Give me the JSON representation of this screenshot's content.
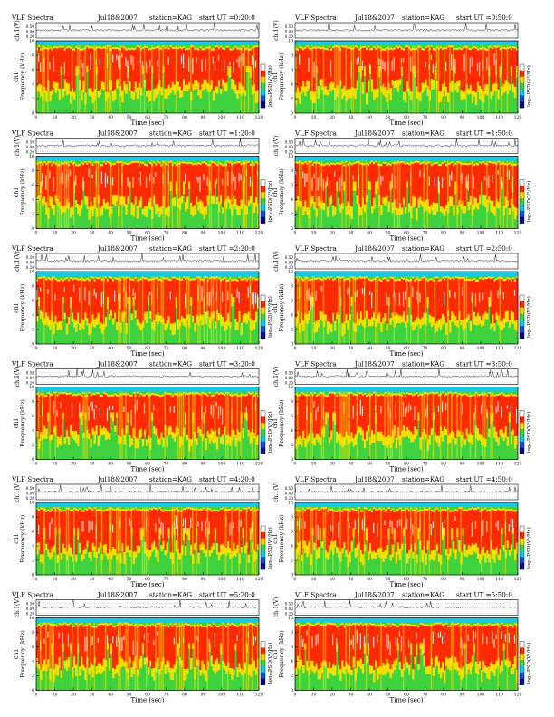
{
  "page": {
    "title": "VLF Spectra page"
  },
  "colors": {
    "background": "#ffffff",
    "spectrum_low": "#1a4bd6",
    "spectrum_mid_low": "#18c8e6",
    "spectrum_mid": "#3fd23f",
    "spectrum_mid_high": "#f2e100",
    "spectrum_high": "#ff2a00",
    "spectrum_peak": "#ffffff",
    "axis": "#000000"
  },
  "common_labels": {
    "title_left": "VLF Spectra",
    "date_left": "Jul18&2007",
    "date_right": "Jul18&2007",
    "station": "station=KAG",
    "start_prefix": "start  UT =",
    "amp_ylabel": "ch.1(V)",
    "freq_ylabel_ch": "ch1",
    "freq_ylabel": "Frequency (kHz)",
    "xlabel": "Time (sec)",
    "colorbar_label": "log₁₀PSD(V²/Hz)"
  },
  "chart_data": [
    {
      "type": "heatmap",
      "panel": "left",
      "start_ut": "0:20:0",
      "title": "VLF Spectra",
      "date": "Jul18&2007",
      "station": "station=KAG",
      "xlabel": "Time (sec)",
      "ylabel": "Frequency (kHz)",
      "amp_ylabel": "ch.1(V)",
      "x_ticks": [
        "0",
        "10",
        "20",
        "30",
        "40",
        "50",
        "60",
        "70",
        "80",
        "90",
        "100",
        "110",
        "120"
      ],
      "y_ticks": [
        "0",
        "2",
        "4",
        "6",
        "8",
        "10"
      ],
      "amp_ticks": [
        "0.50",
        "0.00",
        "0.20"
      ],
      "xlim": [
        0,
        120
      ],
      "ylim": [
        0,
        10
      ]
    },
    {
      "type": "heatmap",
      "panel": "right",
      "start_ut": "0:50:0",
      "title": "VLF Spectra",
      "date": "Jul18&2007",
      "station": "station=KAG",
      "xlabel": "Time (sec)",
      "ylabel": "Frequency (kHz)",
      "amp_ylabel": "ch.1(V)",
      "x_ticks": [
        "0",
        "10",
        "20",
        "30",
        "40",
        "50",
        "60",
        "70",
        "80",
        "90",
        "100",
        "110",
        "120"
      ],
      "y_ticks": [
        "0",
        "2",
        "4",
        "6",
        "8",
        "10"
      ],
      "amp_ticks": [
        "0.50",
        "0.00",
        "0.20"
      ],
      "xlim": [
        0,
        120
      ],
      "ylim": [
        0,
        10
      ]
    },
    {
      "type": "heatmap",
      "panel": "left",
      "start_ut": "1:20:0",
      "title": "VLF Spectra",
      "date": "Jul18&2007",
      "station": "station=KAG",
      "xlabel": "Time (sec)",
      "ylabel": "Frequency (kHz)",
      "amp_ylabel": "ch.1(V)",
      "x_ticks": [
        "0",
        "10",
        "20",
        "30",
        "40",
        "50",
        "60",
        "70",
        "80",
        "90",
        "100",
        "110",
        "120"
      ],
      "y_ticks": [
        "0",
        "2",
        "4",
        "6",
        "8",
        "10"
      ],
      "amp_ticks": [
        "0.50",
        "0.00",
        "0.20"
      ],
      "xlim": [
        0,
        120
      ],
      "ylim": [
        0,
        10
      ]
    },
    {
      "type": "heatmap",
      "panel": "right",
      "start_ut": "1:50:0",
      "title": "VLF Spectra",
      "date": "Jul18&2007",
      "station": "station=KAG",
      "xlabel": "Time (sec)",
      "ylabel": "Frequency (kHz)",
      "amp_ylabel": "ch.1(V)",
      "x_ticks": [
        "0",
        "10",
        "20",
        "30",
        "40",
        "50",
        "60",
        "70",
        "80",
        "90",
        "100",
        "110",
        "120"
      ],
      "y_ticks": [
        "0",
        "2",
        "4",
        "6",
        "8",
        "10"
      ],
      "amp_ticks": [
        "0.50",
        "0.00",
        "0.20"
      ],
      "xlim": [
        0,
        120
      ],
      "ylim": [
        0,
        10
      ]
    },
    {
      "type": "heatmap",
      "panel": "left",
      "start_ut": "2:20:0",
      "title": "VLF Spectra",
      "date": "Jul18&2007",
      "station": "station=KAG",
      "xlabel": "Time (sec)",
      "ylabel": "Frequency (kHz)",
      "amp_ylabel": "ch.1(V)",
      "x_ticks": [
        "0",
        "10",
        "20",
        "30",
        "40",
        "50",
        "60",
        "70",
        "80",
        "90",
        "100",
        "110",
        "120"
      ],
      "y_ticks": [
        "0",
        "2",
        "4",
        "6",
        "8",
        "10"
      ],
      "amp_ticks": [
        "0.50",
        "0.00",
        "0.20"
      ],
      "xlim": [
        0,
        120
      ],
      "ylim": [
        0,
        10
      ]
    },
    {
      "type": "heatmap",
      "panel": "right",
      "start_ut": "2:50:0",
      "title": "VLF Spectra",
      "date": "Jul18&2007",
      "station": "station=KAG",
      "xlabel": "Time (sec)",
      "ylabel": "Frequency (kHz)",
      "amp_ylabel": "ch.1(V)",
      "x_ticks": [
        "0",
        "10",
        "20",
        "30",
        "40",
        "50",
        "60",
        "70",
        "80",
        "90",
        "100",
        "110",
        "120"
      ],
      "y_ticks": [
        "0",
        "2",
        "4",
        "6",
        "8",
        "10"
      ],
      "amp_ticks": [
        "0.50",
        "0.00",
        "0.20"
      ],
      "xlim": [
        0,
        120
      ],
      "ylim": [
        0,
        10
      ]
    },
    {
      "type": "heatmap",
      "panel": "left",
      "start_ut": "3:20:0",
      "title": "VLF Spectra",
      "date": "Jul18&2007",
      "station": "station=KAG",
      "xlabel": "Time (sec)",
      "ylabel": "Frequency (kHz)",
      "amp_ylabel": "ch.1(V)",
      "x_ticks": [
        "0",
        "10",
        "20",
        "30",
        "40",
        "50",
        "60",
        "70",
        "80",
        "90",
        "100",
        "110",
        "120"
      ],
      "y_ticks": [
        "0",
        "2",
        "4",
        "6",
        "8",
        "10"
      ],
      "amp_ticks": [
        "0.50",
        "0.00",
        "0.20"
      ],
      "xlim": [
        0,
        120
      ],
      "ylim": [
        0,
        10
      ]
    },
    {
      "type": "heatmap",
      "panel": "right",
      "start_ut": "3:50:0",
      "title": "VLF Spectra",
      "date": "Jul18&2007",
      "station": "station=KAG",
      "xlabel": "Time (sec)",
      "ylabel": "Frequency (kHz)",
      "amp_ylabel": "ch.1(V)",
      "x_ticks": [
        "0",
        "10",
        "20",
        "30",
        "40",
        "50",
        "60",
        "70",
        "80",
        "90",
        "100",
        "110",
        "120"
      ],
      "y_ticks": [
        "0",
        "2",
        "4",
        "6",
        "8",
        "10"
      ],
      "amp_ticks": [
        "0.50",
        "0.00",
        "0.20"
      ],
      "xlim": [
        0,
        120
      ],
      "ylim": [
        0,
        10
      ]
    },
    {
      "type": "heatmap",
      "panel": "left",
      "start_ut": "4:20:0",
      "title": "VLF Spectra",
      "date": "Jul18&2007",
      "station": "station=KAG",
      "xlabel": "Time (sec)",
      "ylabel": "Frequency (kHz)",
      "amp_ylabel": "ch.1(V)",
      "x_ticks": [
        "0",
        "10",
        "20",
        "30",
        "40",
        "50",
        "60",
        "70",
        "80",
        "90",
        "100",
        "110",
        "120"
      ],
      "y_ticks": [
        "0",
        "2",
        "4",
        "6",
        "8",
        "10"
      ],
      "amp_ticks": [
        "0.50",
        "0.00",
        "0.20"
      ],
      "xlim": [
        0,
        120
      ],
      "ylim": [
        0,
        10
      ]
    },
    {
      "type": "heatmap",
      "panel": "right",
      "start_ut": "4:50:0",
      "title": "VLF Spectra",
      "date": "Jul18&2007",
      "station": "station=KAG",
      "xlabel": "Time (sec)",
      "ylabel": "Frequency (kHz)",
      "amp_ylabel": "ch.1(V)",
      "x_ticks": [
        "0",
        "10",
        "20",
        "30",
        "40",
        "50",
        "60",
        "70",
        "80",
        "90",
        "100",
        "110",
        "120"
      ],
      "y_ticks": [
        "0",
        "2",
        "4",
        "6",
        "8",
        "10"
      ],
      "amp_ticks": [
        "0.50",
        "0.00",
        "0.20"
      ],
      "xlim": [
        0,
        120
      ],
      "ylim": [
        0,
        10
      ]
    },
    {
      "type": "heatmap",
      "panel": "left",
      "start_ut": "5:20:0",
      "title": "VLF Spectra",
      "date": "Jul18&2007",
      "station": "station=KAG",
      "xlabel": "Time (sec)",
      "ylabel": "Frequency (kHz)",
      "amp_ylabel": "ch.1(V)",
      "x_ticks": [
        "0",
        "10",
        "20",
        "30",
        "40",
        "50",
        "60",
        "70",
        "80",
        "90",
        "100",
        "110",
        "120"
      ],
      "y_ticks": [
        "0",
        "2",
        "4",
        "6",
        "8",
        "10"
      ],
      "amp_ticks": [
        "0.50",
        "0.00",
        "0.20"
      ],
      "xlim": [
        0,
        120
      ],
      "ylim": [
        0,
        10
      ]
    },
    {
      "type": "heatmap",
      "panel": "right",
      "start_ut": "5:50:0",
      "title": "VLF Spectra",
      "date": "Jul18&2007",
      "station": "station=KAG",
      "xlabel": "Time (sec)",
      "ylabel": "Frequency (kHz)",
      "amp_ylabel": "ch.1(V)",
      "x_ticks": [
        "0",
        "10",
        "20",
        "30",
        "40",
        "50",
        "60",
        "70",
        "80",
        "90",
        "100",
        "110",
        "120"
      ],
      "y_ticks": [
        "0",
        "2",
        "4",
        "6",
        "8",
        "10"
      ],
      "amp_ticks": [
        "0.50",
        "0.00",
        "0.20"
      ],
      "xlim": [
        0,
        120
      ],
      "ylim": [
        0,
        10
      ]
    }
  ]
}
